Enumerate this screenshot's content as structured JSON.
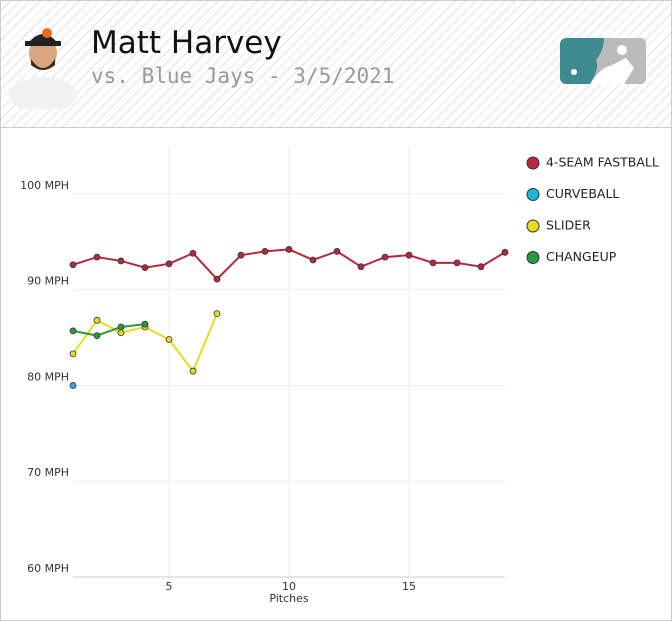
{
  "header": {
    "title": "Matt Harvey",
    "subtitle": "vs. Blue Jays - 3/5/2021"
  },
  "chart_data": {
    "type": "line",
    "x_label": "Pitches",
    "x": [
      1,
      2,
      3,
      4,
      5,
      6,
      7,
      8,
      9,
      10,
      11,
      12,
      13,
      14,
      15,
      16,
      17,
      18,
      19
    ],
    "xlim": [
      1,
      19
    ],
    "xticks": [
      5,
      10,
      15
    ],
    "ylim": [
      60,
      105
    ],
    "yticks": [
      {
        "value": 60,
        "label": "60 MPH"
      },
      {
        "value": 70,
        "label": "70 MPH"
      },
      {
        "value": 80,
        "label": "80 MPH"
      },
      {
        "value": 90,
        "label": "90 MPH"
      },
      {
        "value": 100,
        "label": "100 MPH"
      }
    ],
    "grid": true,
    "legend": "right",
    "series": [
      {
        "name": "4-SEAM FASTBALL",
        "color": "#b5293f",
        "values": [
          92.6,
          93.4,
          93.0,
          92.3,
          92.7,
          93.8,
          91.1,
          93.6,
          94.0,
          94.2,
          93.1,
          94.0,
          92.4,
          93.4,
          93.6,
          92.8,
          92.8,
          92.4,
          93.9
        ]
      },
      {
        "name": "CURVEBALL",
        "color": "#1ab8d8",
        "values": [
          80.0,
          null,
          null,
          null,
          null,
          null,
          null,
          null,
          null,
          null,
          null,
          null,
          null,
          null,
          null,
          null,
          null,
          null,
          null
        ]
      },
      {
        "name": "SLIDER",
        "color": "#e8dc1e",
        "values": [
          83.3,
          86.8,
          85.5,
          86.1,
          84.8,
          81.5,
          87.5,
          null,
          null,
          null,
          null,
          null,
          null,
          null,
          null,
          null,
          null,
          null,
          null
        ]
      },
      {
        "name": "CHANGEUP",
        "color": "#2a9a3c",
        "values": [
          85.7,
          85.2,
          86.1,
          86.4,
          null,
          null,
          null,
          null,
          null,
          null,
          null,
          null,
          null,
          null,
          null,
          null,
          null,
          null,
          null
        ]
      }
    ]
  }
}
